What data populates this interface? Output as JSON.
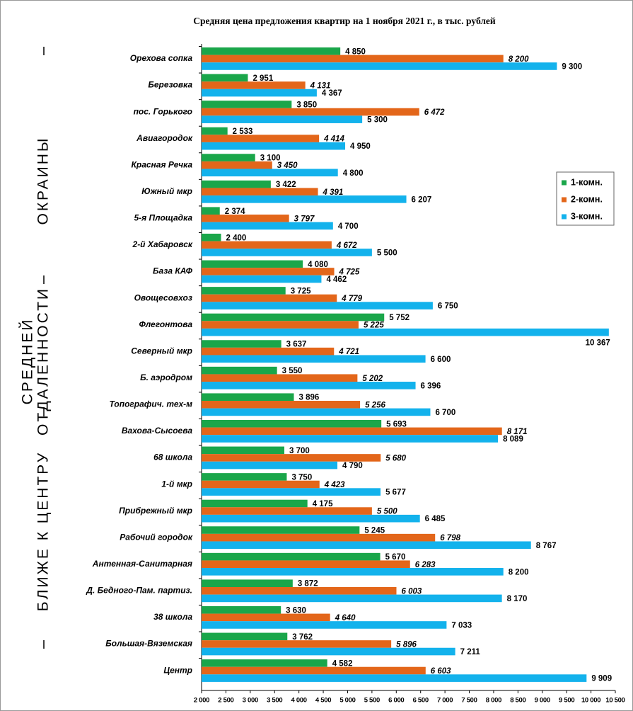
{
  "chart_data": {
    "type": "bar",
    "orientation": "horizontal",
    "title": "Средняя цена предложения квартир на 1 ноября 2021 г., в тыс. рублей",
    "group_labels": [
      "ОКРАИНЫ",
      "СРЕДНЕЙ",
      "ОТДАЛЕННОСТИ",
      "БЛИЖЕ  К  ЦЕНТРУ"
    ],
    "categories": [
      "Орехова сопка",
      "Березовка",
      "пос. Горького",
      "Авиагородок",
      "Красная Речка",
      "Южный мкр",
      "5-я Площадка",
      "2-й Хабаровск",
      "База КАФ",
      "Овощесовхоз",
      "Флегонтова",
      "Северный мкр",
      "Б. аэродром",
      "Топографич. тех-м",
      "Вахова-Сысоева",
      "68 школа",
      "1-й мкр",
      "Прибрежный мкр",
      "Рабочий городок",
      "Антенная-Санитарная",
      "Д. Бедного-Пам. партиз.",
      "38 школа",
      "Большая-Вяземская",
      "Центр"
    ],
    "series": [
      {
        "name": "1-комн.",
        "color": "#1aa64a",
        "values": [
          4850,
          2951,
          3850,
          2533,
          3100,
          3422,
          2374,
          2400,
          4080,
          3725,
          5752,
          3637,
          3550,
          3896,
          5693,
          3700,
          3750,
          4175,
          5245,
          5670,
          3872,
          3630,
          3762,
          4582
        ],
        "value_labels": [
          "4 850",
          "2 951",
          "3 850",
          "2 533",
          "3 100",
          "3 422",
          "2 374",
          "2 400",
          "4 080",
          "3 725",
          "5 752",
          "3 637",
          "3 550",
          "3 896",
          "5 693",
          "3 700",
          "3 750",
          "4 175",
          "5 245",
          "5 670",
          "3 872",
          "3 630",
          "3 762",
          "4 582"
        ]
      },
      {
        "name": "2-комн.",
        "color": "#e3661a",
        "values": [
          8200,
          4131,
          6472,
          4414,
          3450,
          4391,
          3797,
          4672,
          4725,
          4779,
          5225,
          4721,
          5202,
          5256,
          8171,
          5680,
          4423,
          5500,
          6798,
          6283,
          6003,
          4640,
          5896,
          6603
        ],
        "value_labels": [
          "8 200",
          "4 131",
          "6 472",
          "4 414",
          "3 450",
          "4 391",
          "3 797",
          "4 672",
          "4 725",
          "4 779",
          "5 225",
          "4 721",
          "5 202",
          "5 256",
          "8 171",
          "5 680",
          "4 423",
          "5 500",
          "6 798",
          "6 283",
          "6 003",
          "4 640",
          "5 896",
          "6 603"
        ]
      },
      {
        "name": "3-комн.",
        "color": "#13b2ec",
        "values": [
          9300,
          4367,
          5300,
          4950,
          4800,
          6207,
          4700,
          5500,
          4462,
          6750,
          10367,
          6600,
          6396,
          6700,
          8089,
          4790,
          5677,
          6485,
          8767,
          8200,
          8170,
          7033,
          7211,
          9909
        ],
        "value_labels": [
          "9 300",
          "4 367",
          "5 300",
          "4 950",
          "4 800",
          "6 207",
          "4 700",
          "5 500",
          "4 462",
          "6 750",
          "10 367",
          "6 600",
          "6 396",
          "6 700",
          "8 089",
          "4 790",
          "5 677",
          "6 485",
          "8 767",
          "8 200",
          "8 170",
          "7 033",
          "7 211",
          "9 909"
        ]
      }
    ],
    "xlim": [
      2000,
      10500
    ],
    "xticks": [
      {
        "value": 2000,
        "label": "2 000"
      },
      {
        "value": 2500,
        "label": "2 500"
      },
      {
        "value": 3000,
        "label": "3 000"
      },
      {
        "value": 3500,
        "label": "3 500"
      },
      {
        "value": 4000,
        "label": "4 000"
      },
      {
        "value": 4500,
        "label": "4 500"
      },
      {
        "value": 5000,
        "label": "5 000"
      },
      {
        "value": 5500,
        "label": "5 500"
      },
      {
        "value": 6000,
        "label": "6 000"
      },
      {
        "value": 6500,
        "label": "6 500"
      },
      {
        "value": 7000,
        "label": "7 000"
      },
      {
        "value": 7500,
        "label": "7 500"
      },
      {
        "value": 8000,
        "label": "8 000"
      },
      {
        "value": 8500,
        "label": "8 500"
      },
      {
        "value": 9000,
        "label": "9 000"
      },
      {
        "value": 9500,
        "label": "9 500"
      },
      {
        "value": 10000,
        "label": "10 000"
      },
      {
        "value": 10500,
        "label": "10 500"
      }
    ],
    "legend": "right"
  }
}
